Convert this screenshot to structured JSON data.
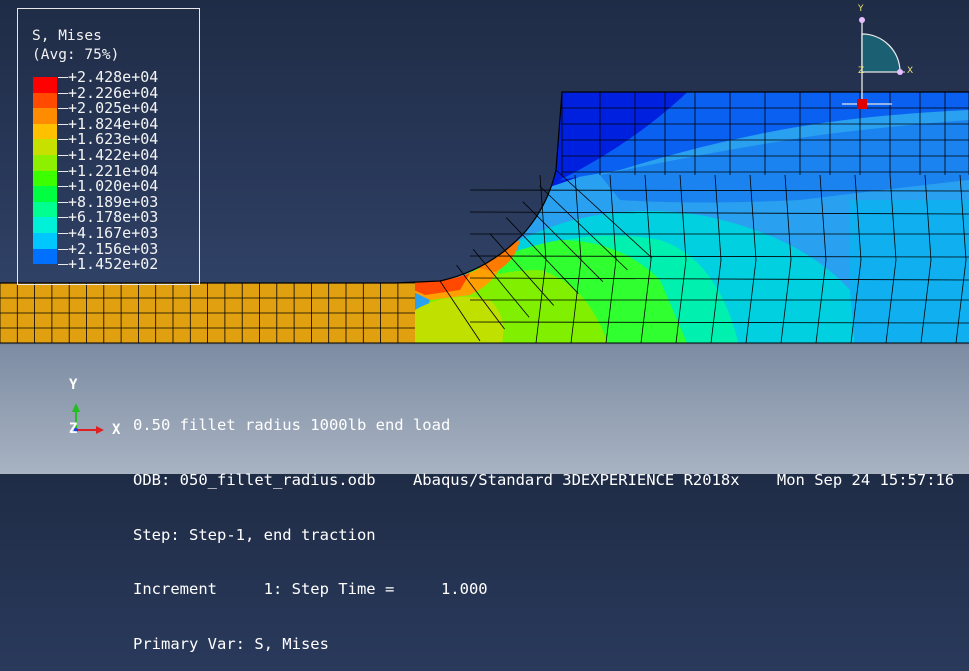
{
  "legend": {
    "title": "S, Mises",
    "avg": "(Avg: 75%)",
    "levels": [
      {
        "label": "+2.428e+04",
        "color": "#ff0000"
      },
      {
        "label": "+2.226e+04",
        "color": "#ff4a00"
      },
      {
        "label": "+2.025e+04",
        "color": "#ff8c00"
      },
      {
        "label": "+1.824e+04",
        "color": "#ffc000"
      },
      {
        "label": "+1.623e+04",
        "color": "#c8e000"
      },
      {
        "label": "+1.422e+04",
        "color": "#8cf000"
      },
      {
        "label": "+1.221e+04",
        "color": "#3cff00"
      },
      {
        "label": "+1.020e+04",
        "color": "#00ff40"
      },
      {
        "label": "+8.189e+03",
        "color": "#00ff90"
      },
      {
        "label": "+6.178e+03",
        "color": "#00f0d8"
      },
      {
        "label": "+4.167e+03",
        "color": "#00c8ff"
      },
      {
        "label": "+2.156e+03",
        "color": "#0070ff"
      },
      {
        "label": "+1.452e+02",
        "color": "#0000ff"
      }
    ]
  },
  "info": {
    "line1": "0.50 fillet radius 1000lb end load",
    "line2": "ODB: 050_fillet_radius.odb    Abaqus/Standard 3DEXPERIENCE R2018x    Mon Sep 24 15:57:16",
    "line3": "Step: Step-1, end traction",
    "line4": "Increment     1: Step Time =     1.000",
    "line5": "Primary Var: S, Mises"
  },
  "triad": {
    "y": "Y",
    "z": "Z",
    "x": "X"
  },
  "view_cube": {
    "y": "Y",
    "z": "Z",
    "x": "X"
  },
  "colors": {
    "band_orange": "#e0a010",
    "mesh_line": "#000000"
  }
}
